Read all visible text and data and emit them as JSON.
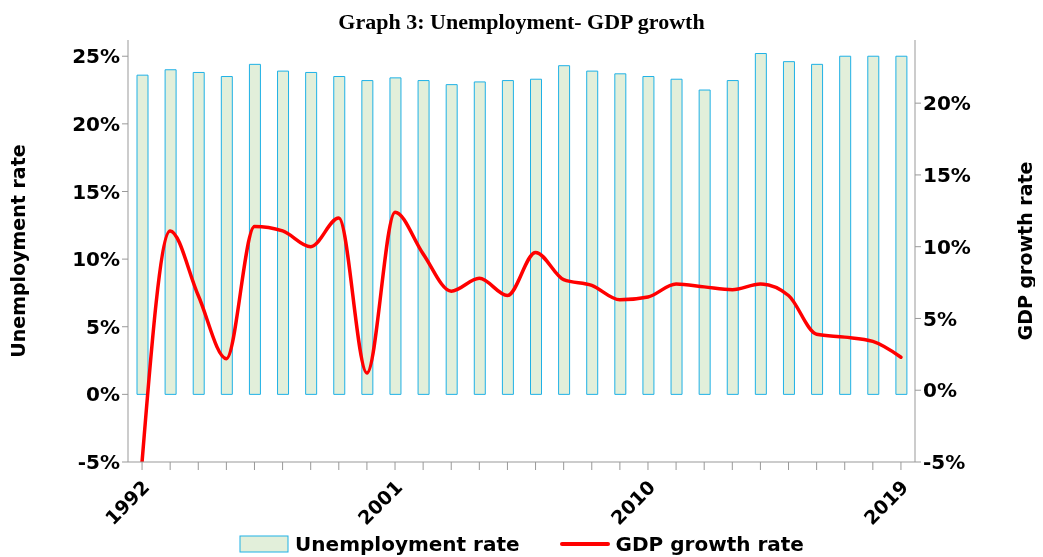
{
  "chart_data": {
    "type": "bar",
    "title": "Graph 3: Unemployment- GDP growth",
    "categories": [
      "1992",
      null,
      null,
      null,
      null,
      null,
      null,
      null,
      null,
      "2001",
      null,
      null,
      null,
      null,
      null,
      null,
      null,
      null,
      "2010",
      null,
      null,
      null,
      null,
      null,
      null,
      null,
      null,
      "2019"
    ],
    "series": [
      {
        "name": "Unemployment rate",
        "color": "#e2efda",
        "values": [
          23.6,
          24.0,
          23.8,
          23.5,
          24.4,
          23.9,
          23.8,
          23.5,
          23.2,
          23.4,
          23.2,
          22.9,
          23.1,
          23.2,
          23.3,
          24.3,
          23.9,
          23.7,
          23.5,
          23.3,
          22.5,
          23.2,
          25.2,
          24.6,
          24.4,
          25.0,
          25.0,
          25.0
        ]
      },
      {
        "name": "GDP growth rate",
        "type": "line",
        "axis": "y2",
        "color": "#ff0000",
        "values": [
          -5,
          11.1,
          6.6,
          2.2,
          11.4,
          11.1,
          10.0,
          12.0,
          1.2,
          12.4,
          9.5,
          6.9,
          7.8,
          6.6,
          9.6,
          7.7,
          7.3,
          6.3,
          6.5,
          7.4,
          7.2,
          7.0,
          7.4,
          6.6,
          3.9,
          3.7,
          3.4,
          2.3
        ]
      }
    ],
    "ylabel": "Unemployment rate",
    "y2label": "GDP growth rate",
    "ylim": [
      -5,
      26.2
    ],
    "yticks": [
      {
        "value": -5,
        "label": "-5%"
      },
      {
        "value": 0,
        "label": "0%"
      },
      {
        "value": 5,
        "label": "5%"
      },
      {
        "value": 10,
        "label": "10%"
      },
      {
        "value": 15,
        "label": "15%"
      },
      {
        "value": 20,
        "label": "20%"
      },
      {
        "value": 25,
        "label": "25%"
      }
    ],
    "y2lim": [
      -5,
      24.4
    ],
    "y2ticks": [
      {
        "value": -5,
        "label": "-5%"
      },
      {
        "value": 0,
        "label": "0%"
      },
      {
        "value": 5,
        "label": "5%"
      },
      {
        "value": 10,
        "label": "10%"
      },
      {
        "value": 15,
        "label": "15%"
      },
      {
        "value": 20,
        "label": "20%"
      }
    ],
    "legend": "bottom",
    "grid": false,
    "marker": "none",
    "line_style": "solid"
  }
}
